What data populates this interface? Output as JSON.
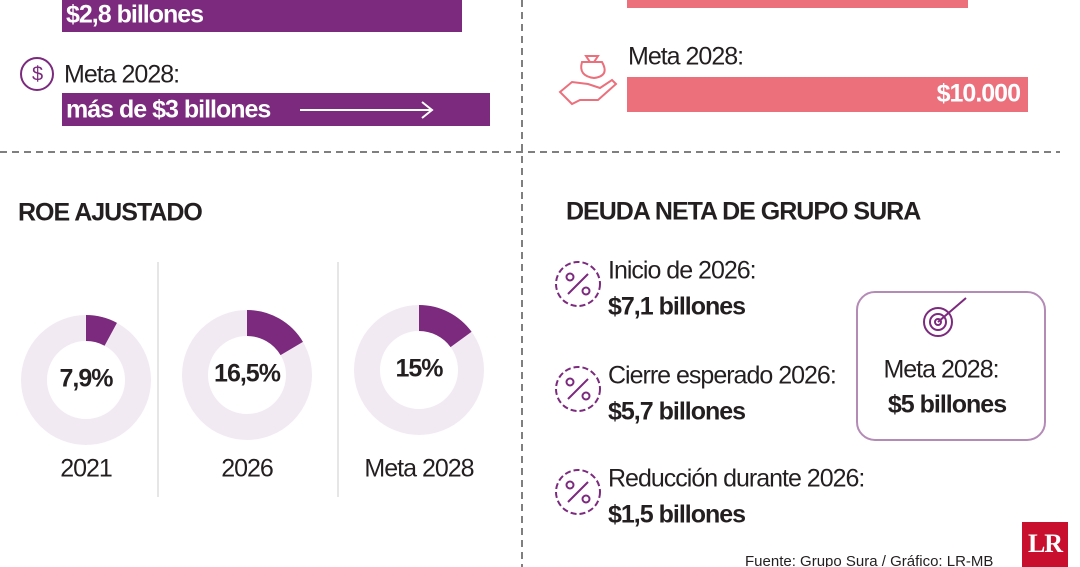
{
  "top_left": {
    "current": "$2,8 billones",
    "goal_label": "Meta 2028:",
    "goal_value": "más de $3 billones"
  },
  "top_right": {
    "goal_label": "Meta 2028:",
    "goal_value": "$10.000"
  },
  "roe": {
    "title": "ROE AJUSTADO"
  },
  "chart_data": {
    "type": "donut",
    "categories": [
      "2021",
      "2026",
      "Meta 2028"
    ],
    "values": [
      7.9,
      16.5,
      15
    ],
    "value_labels": [
      "7,9%",
      "16,5%",
      "15%"
    ],
    "color": "#7b2a7d",
    "track_color": "#f2eaf3"
  },
  "debt": {
    "title": "DEUDA NETA DE GRUPO SURA",
    "items": [
      {
        "label": "Inicio de 2026:",
        "value": "$7,1 billones"
      },
      {
        "label": "Cierre esperado 2026:",
        "value": "$5,7 billones"
      },
      {
        "label": "Reducción durante 2026:",
        "value": "$1,5 billones"
      }
    ],
    "goal_label": "Meta 2028:",
    "goal_value": "$5 billones"
  },
  "source": "Fuente: Grupo Sura / Gráfico: LR-MB",
  "logo": "LR"
}
